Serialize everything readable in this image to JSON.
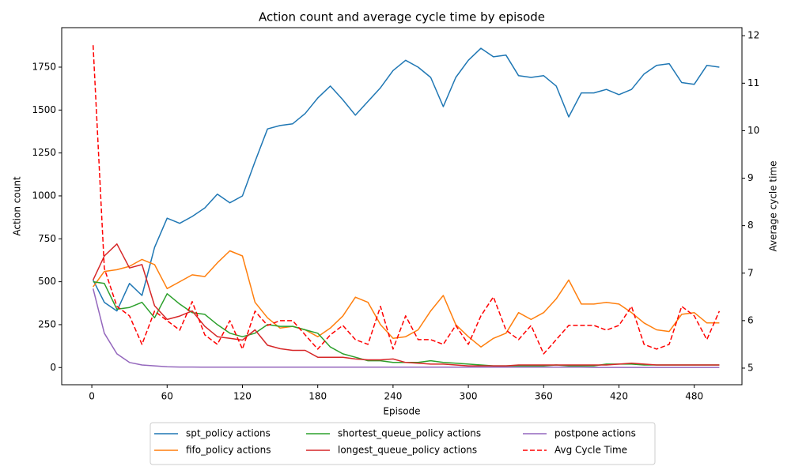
{
  "chart_data": {
    "type": "line",
    "title": "Action count and average cycle time by episode",
    "xlabel": "Episode",
    "ylabel": "Action count",
    "y2label": "Average cycle time",
    "x": [
      1,
      10,
      20,
      30,
      40,
      50,
      60,
      70,
      80,
      90,
      100,
      110,
      120,
      130,
      140,
      150,
      160,
      170,
      180,
      190,
      200,
      210,
      220,
      230,
      240,
      250,
      260,
      270,
      280,
      290,
      300,
      310,
      320,
      330,
      340,
      350,
      360,
      370,
      380,
      390,
      400,
      410,
      420,
      430,
      440,
      450,
      460,
      470,
      480,
      490,
      500
    ],
    "xlim": [
      -24,
      518
    ],
    "ylim": [
      -100,
      1980
    ],
    "y2lim": [
      4.65,
      12.17
    ],
    "xticks": [
      0,
      60,
      120,
      180,
      240,
      300,
      360,
      420,
      480
    ],
    "yticks": [
      0,
      250,
      500,
      750,
      1000,
      1250,
      1500,
      1750
    ],
    "y2ticks": [
      5,
      6,
      7,
      8,
      9,
      10,
      11,
      12
    ],
    "legend_loc": "below",
    "series": [
      {
        "name": "spt_policy actions",
        "color": "#1f77b4",
        "linestyle": "solid",
        "values": [
          510,
          380,
          330,
          490,
          420,
          700,
          870,
          840,
          880,
          930,
          1010,
          960,
          1000,
          1200,
          1390,
          1410,
          1420,
          1480,
          1570,
          1640,
          1560,
          1470,
          1550,
          1630,
          1730,
          1790,
          1750,
          1690,
          1520,
          1690,
          1790,
          1860,
          1810,
          1820,
          1700,
          1690,
          1700,
          1640,
          1460,
          1600,
          1600,
          1620,
          1590,
          1620,
          1710,
          1760,
          1770,
          1660,
          1650,
          1760,
          1750
        ]
      },
      {
        "name": "fifo_policy actions",
        "color": "#ff7f0e",
        "linestyle": "solid",
        "values": [
          470,
          560,
          570,
          590,
          630,
          600,
          460,
          500,
          540,
          530,
          610,
          680,
          650,
          380,
          290,
          230,
          240,
          220,
          180,
          230,
          300,
          410,
          380,
          250,
          170,
          180,
          220,
          330,
          420,
          250,
          180,
          120,
          170,
          200,
          320,
          280,
          320,
          400,
          510,
          370,
          370,
          380,
          370,
          320,
          260,
          220,
          210,
          310,
          320,
          260,
          260
        ]
      },
      {
        "name": "shortest_queue_policy actions",
        "color": "#2ca02c",
        "linestyle": "solid",
        "values": [
          500,
          490,
          340,
          350,
          380,
          290,
          430,
          370,
          320,
          310,
          250,
          200,
          180,
          200,
          250,
          240,
          240,
          220,
          200,
          120,
          80,
          60,
          40,
          40,
          30,
          30,
          30,
          40,
          30,
          25,
          20,
          15,
          10,
          10,
          10,
          10,
          10,
          15,
          10,
          10,
          10,
          20,
          20,
          20,
          15,
          15,
          15,
          15,
          15,
          15,
          15
        ]
      },
      {
        "name": "longest_queue_policy actions",
        "color": "#d62728",
        "linestyle": "solid",
        "values": [
          510,
          650,
          720,
          580,
          600,
          360,
          280,
          300,
          330,
          240,
          180,
          170,
          160,
          220,
          130,
          110,
          100,
          100,
          60,
          60,
          60,
          50,
          45,
          45,
          50,
          30,
          25,
          20,
          20,
          15,
          10,
          10,
          10,
          10,
          15,
          15,
          15,
          15,
          15,
          15,
          15,
          15,
          20,
          25,
          20,
          15,
          15,
          15,
          15,
          15,
          15
        ]
      },
      {
        "name": "postpone actions",
        "color": "#9467bd",
        "linestyle": "solid",
        "values": [
          460,
          200,
          80,
          30,
          15,
          10,
          5,
          3,
          3,
          2,
          2,
          2,
          2,
          2,
          2,
          2,
          2,
          2,
          2,
          2,
          2,
          2,
          2,
          2,
          2,
          2,
          2,
          2,
          2,
          2,
          2,
          2,
          2,
          2,
          2,
          2,
          2,
          2,
          2,
          2,
          1,
          1,
          1,
          1,
          1,
          1,
          1,
          1,
          1,
          1,
          1
        ]
      },
      {
        "name": "Avg Cycle Time",
        "color": "#ff0000",
        "linestyle": "dashed",
        "axis": "y2",
        "values": [
          11.8,
          7.1,
          6.3,
          6.1,
          5.5,
          6.2,
          6.0,
          5.8,
          6.4,
          5.7,
          5.5,
          6.0,
          5.4,
          6.2,
          5.9,
          6.0,
          6.0,
          5.7,
          5.4,
          5.7,
          5.9,
          5.6,
          5.5,
          6.3,
          5.4,
          6.1,
          5.6,
          5.6,
          5.5,
          5.9,
          5.5,
          6.1,
          6.5,
          5.8,
          5.6,
          5.9,
          5.3,
          5.6,
          5.9,
          5.9,
          5.9,
          5.8,
          5.9,
          6.3,
          5.5,
          5.4,
          5.5,
          6.3,
          6.1,
          5.6,
          6.2
        ]
      }
    ]
  }
}
